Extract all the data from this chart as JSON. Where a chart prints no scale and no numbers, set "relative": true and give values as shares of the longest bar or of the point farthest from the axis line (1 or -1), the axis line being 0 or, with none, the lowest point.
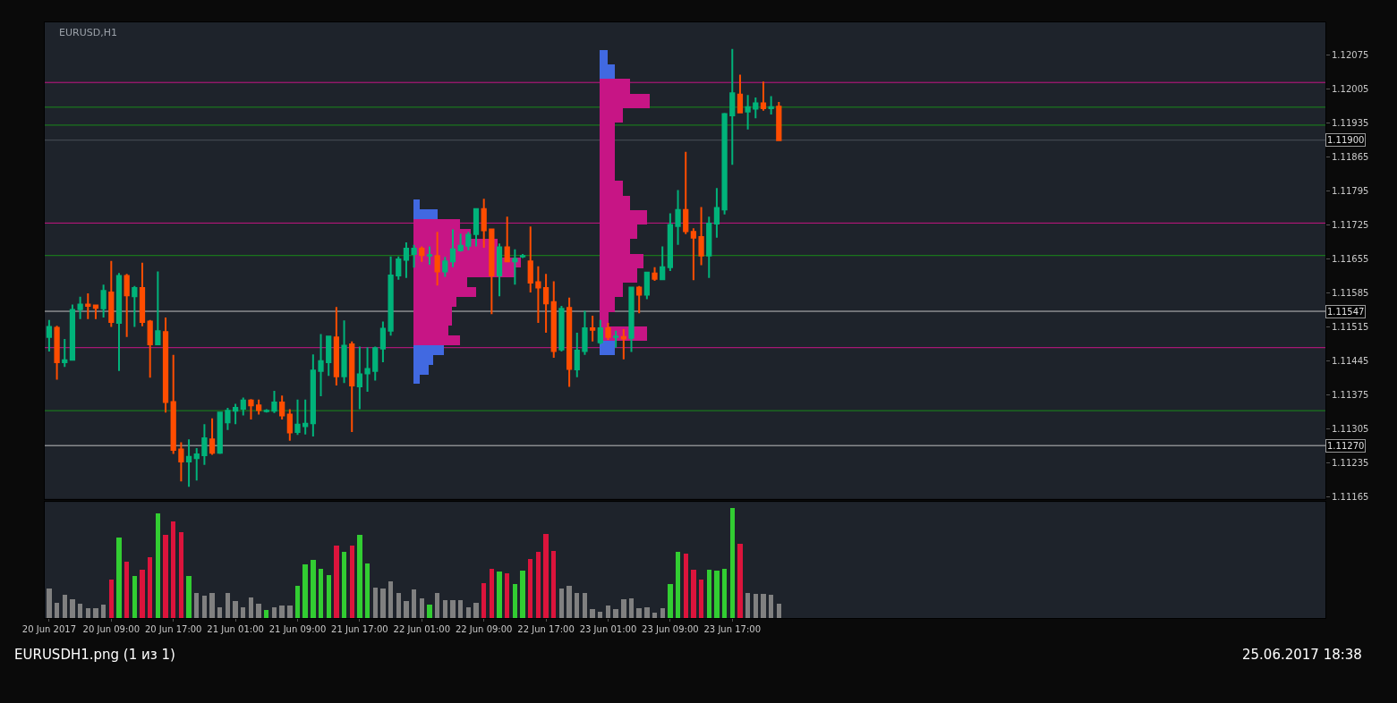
{
  "chart_data": [
    {
      "type": "candlestick",
      "title": "EURUSD,H1",
      "x": [
        "2017-06-20T01:00",
        "2017-06-20T02:00",
        "2017-06-20T03:00",
        "2017-06-20T04:00",
        "2017-06-20T05:00",
        "2017-06-20T06:00",
        "2017-06-20T07:00",
        "2017-06-20T08:00",
        "2017-06-20T09:00",
        "2017-06-20T10:00",
        "2017-06-20T11:00",
        "2017-06-20T12:00",
        "2017-06-20T13:00",
        "2017-06-20T14:00",
        "2017-06-20T15:00",
        "2017-06-20T16:00",
        "2017-06-20T17:00",
        "2017-06-20T18:00",
        "2017-06-20T19:00",
        "2017-06-20T20:00",
        "2017-06-20T21:00",
        "2017-06-20T22:00",
        "2017-06-20T23:00",
        "2017-06-21T00:00",
        "2017-06-21T01:00",
        "2017-06-21T02:00",
        "2017-06-21T03:00",
        "2017-06-21T04:00",
        "2017-06-21T05:00",
        "2017-06-21T06:00",
        "2017-06-21T07:00",
        "2017-06-21T08:00",
        "2017-06-21T09:00",
        "2017-06-21T10:00",
        "2017-06-21T11:00",
        "2017-06-21T12:00",
        "2017-06-21T13:00",
        "2017-06-21T14:00",
        "2017-06-21T15:00",
        "2017-06-21T16:00",
        "2017-06-21T17:00",
        "2017-06-21T18:00",
        "2017-06-21T19:00",
        "2017-06-21T20:00",
        "2017-06-21T21:00",
        "2017-06-21T22:00",
        "2017-06-21T23:00",
        "2017-06-22T00:00",
        "2017-06-22T01:00",
        "2017-06-22T02:00",
        "2017-06-22T03:00",
        "2017-06-22T04:00",
        "2017-06-22T05:00",
        "2017-06-22T06:00",
        "2017-06-22T07:00",
        "2017-06-22T08:00",
        "2017-06-22T09:00",
        "2017-06-22T10:00",
        "2017-06-22T11:00",
        "2017-06-22T12:00",
        "2017-06-22T13:00",
        "2017-06-22T14:00",
        "2017-06-22T15:00",
        "2017-06-22T16:00",
        "2017-06-22T17:00",
        "2017-06-22T18:00",
        "2017-06-22T19:00",
        "2017-06-22T20:00",
        "2017-06-22T21:00",
        "2017-06-22T22:00",
        "2017-06-22T23:00",
        "2017-06-23T00:00",
        "2017-06-23T01:00",
        "2017-06-23T02:00",
        "2017-06-23T03:00",
        "2017-06-23T04:00",
        "2017-06-23T05:00",
        "2017-06-23T06:00",
        "2017-06-23T07:00",
        "2017-06-23T08:00",
        "2017-06-23T09:00",
        "2017-06-23T10:00",
        "2017-06-23T11:00",
        "2017-06-23T12:00",
        "2017-06-23T13:00",
        "2017-06-23T14:00",
        "2017-06-23T15:00",
        "2017-06-23T16:00",
        "2017-06-23T17:00",
        "2017-06-23T18:00",
        "2017-06-23T19:00",
        "2017-06-23T20:00",
        "2017-06-23T21:00",
        "2017-06-23T22:00",
        "2017-06-23T23:00"
      ],
      "ohlc": [
        [
          1.11494,
          1.11529,
          1.11464,
          1.11515
        ],
        [
          1.11513,
          1.11517,
          1.11406,
          1.11442
        ],
        [
          1.11442,
          1.1149,
          1.11432,
          1.11446
        ],
        [
          1.11447,
          1.11561,
          1.11447,
          1.1155
        ],
        [
          1.11551,
          1.11577,
          1.11531,
          1.11561
        ],
        [
          1.11561,
          1.11584,
          1.11531,
          1.11558
        ],
        [
          1.11559,
          1.11561,
          1.11531,
          1.11554
        ],
        [
          1.11553,
          1.11602,
          1.11534,
          1.11589
        ],
        [
          1.11586,
          1.11651,
          1.11515,
          1.11525
        ],
        [
          1.11523,
          1.11626,
          1.11424,
          1.1162
        ],
        [
          1.1162,
          1.11624,
          1.11494,
          1.1158
        ],
        [
          1.11578,
          1.11599,
          1.11515,
          1.11595
        ],
        [
          1.11595,
          1.11647,
          1.11516,
          1.11525
        ],
        [
          1.11526,
          1.11529,
          1.1141,
          1.11479
        ],
        [
          1.11479,
          1.11629,
          1.11479,
          1.11506
        ],
        [
          1.11504,
          1.11534,
          1.11338,
          1.1136
        ],
        [
          1.1136,
          1.11457,
          1.11253,
          1.11261
        ],
        [
          1.11262,
          1.11277,
          1.11196,
          1.11237
        ],
        [
          1.11237,
          1.11283,
          1.11185,
          1.11247
        ],
        [
          1.11244,
          1.11265,
          1.11198,
          1.11252
        ],
        [
          1.1125,
          1.11314,
          1.1123,
          1.11285
        ],
        [
          1.11283,
          1.11326,
          1.11251,
          1.11255
        ],
        [
          1.11255,
          1.1134,
          1.11253,
          1.11338
        ],
        [
          1.11318,
          1.11348,
          1.11302,
          1.11342
        ],
        [
          1.11342,
          1.11356,
          1.11314,
          1.11348
        ],
        [
          1.11346,
          1.11369,
          1.11332,
          1.11363
        ],
        [
          1.11363,
          1.11366,
          1.11324,
          1.11353
        ],
        [
          1.11353,
          1.11365,
          1.11334,
          1.11343
        ],
        [
          1.11341,
          1.11345,
          1.11338,
          1.11342
        ],
        [
          1.11342,
          1.11383,
          1.11337,
          1.11359
        ],
        [
          1.11359,
          1.11373,
          1.11324,
          1.11332
        ],
        [
          1.11334,
          1.11345,
          1.1128,
          1.11297
        ],
        [
          1.11298,
          1.11365,
          1.11292,
          1.11313
        ],
        [
          1.1131,
          1.11365,
          1.11293,
          1.11315
        ],
        [
          1.11316,
          1.11458,
          1.11289,
          1.11425
        ],
        [
          1.11424,
          1.115,
          1.11372,
          1.11444
        ],
        [
          1.11442,
          1.11497,
          1.11414,
          1.11495
        ],
        [
          1.11493,
          1.11556,
          1.11394,
          1.11413
        ],
        [
          1.11413,
          1.11528,
          1.11399,
          1.11476
        ],
        [
          1.11479,
          1.11485,
          1.11298,
          1.11394
        ],
        [
          1.11392,
          1.11474,
          1.11345,
          1.11417
        ],
        [
          1.11419,
          1.11473,
          1.11381,
          1.11428
        ],
        [
          1.11424,
          1.11474,
          1.11404,
          1.11471
        ],
        [
          1.1147,
          1.11526,
          1.11442,
          1.11511
        ],
        [
          1.11507,
          1.1166,
          1.11497,
          1.11621
        ],
        [
          1.11621,
          1.1166,
          1.11612,
          1.11654
        ],
        [
          1.11653,
          1.11689,
          1.11616,
          1.11676
        ],
        [
          1.11665,
          1.11684,
          1.11637,
          1.11676
        ],
        [
          1.11676,
          1.11681,
          1.11649,
          1.11663
        ],
        [
          1.11662,
          1.11681,
          1.11643,
          1.11663
        ],
        [
          1.11661,
          1.11711,
          1.116,
          1.11629
        ],
        [
          1.11629,
          1.11659,
          1.11618,
          1.1165
        ],
        [
          1.1165,
          1.11716,
          1.11638,
          1.11675
        ],
        [
          1.11673,
          1.11707,
          1.1167,
          1.11682
        ],
        [
          1.11682,
          1.11711,
          1.11673,
          1.11705
        ],
        [
          1.11706,
          1.11759,
          1.11681,
          1.11758
        ],
        [
          1.11758,
          1.11779,
          1.11678,
          1.11714
        ],
        [
          1.11716,
          1.11717,
          1.11541,
          1.11621
        ],
        [
          1.11621,
          1.11687,
          1.11578,
          1.11679
        ],
        [
          1.11679,
          1.11742,
          1.11649,
          1.1165
        ],
        [
          1.1165,
          1.11675,
          1.11602,
          1.11655
        ],
        [
          1.1166,
          1.11665,
          1.11657,
          1.11661
        ],
        [
          1.1165,
          1.11722,
          1.11586,
          1.11606
        ],
        [
          1.11607,
          1.1164,
          1.11523,
          1.11596
        ],
        [
          1.11595,
          1.11624,
          1.11503,
          1.11563
        ],
        [
          1.11566,
          1.11609,
          1.11451,
          1.11465
        ],
        [
          1.11468,
          1.11558,
          1.11464,
          1.11552
        ],
        [
          1.11554,
          1.11575,
          1.11391,
          1.11428
        ],
        [
          1.11427,
          1.11503,
          1.11411,
          1.11466
        ],
        [
          1.11465,
          1.11548,
          1.11457,
          1.11512
        ],
        [
          1.11512,
          1.11538,
          1.11485,
          1.11509
        ],
        [
          1.11483,
          1.11529,
          1.11479,
          1.11512
        ],
        [
          1.11512,
          1.11523,
          1.11488,
          1.11494
        ],
        [
          1.11494,
          1.11507,
          1.11472,
          1.11495
        ],
        [
          1.11494,
          1.1151,
          1.11448,
          1.11491
        ],
        [
          1.11492,
          1.11597,
          1.11463,
          1.11596
        ],
        [
          1.11596,
          1.11599,
          1.11543,
          1.11581
        ],
        [
          1.11581,
          1.11627,
          1.11572,
          1.11627
        ],
        [
          1.11625,
          1.11638,
          1.1161,
          1.11614
        ],
        [
          1.11613,
          1.11681,
          1.11613,
          1.11638
        ],
        [
          1.11638,
          1.11749,
          1.1163,
          1.11725
        ],
        [
          1.11723,
          1.11797,
          1.11684,
          1.11756
        ],
        [
          1.11756,
          1.11876,
          1.11706,
          1.11712
        ],
        [
          1.11711,
          1.11718,
          1.11611,
          1.11699
        ],
        [
          1.117,
          1.11762,
          1.11642,
          1.11662
        ],
        [
          1.11662,
          1.11742,
          1.11616,
          1.11728
        ],
        [
          1.11728,
          1.11801,
          1.11699,
          1.1176
        ],
        [
          1.11757,
          1.11956,
          1.11747,
          1.11954
        ],
        [
          1.11951,
          1.12088,
          1.11849,
          1.11997
        ],
        [
          1.11994,
          1.12035,
          1.11956,
          1.11957
        ],
        [
          1.11959,
          1.11993,
          1.11922,
          1.11968
        ],
        [
          1.11965,
          1.11988,
          1.11945,
          1.11976
        ],
        [
          1.11976,
          1.12021,
          1.11961,
          1.11966
        ],
        [
          1.11966,
          1.11991,
          1.11953,
          1.11968
        ],
        [
          1.11969,
          1.11979,
          1.11898,
          1.119
        ]
      ],
      "colors": [
        "#00b37a",
        "#ff4d00",
        "#00b37a",
        "#00b37a",
        "#00b37a",
        "#ff4d00",
        "#ff4d00",
        "#00b37a",
        "#ff4d00",
        "#00b37a",
        "#ff4d00",
        "#00b37a",
        "#ff4d00",
        "#ff4d00",
        "#00b37a",
        "#ff4d00",
        "#ff4d00",
        "#ff4d00",
        "#00b37a",
        "#00b37a",
        "#00b37a",
        "#ff4d00",
        "#00b37a",
        "#00b37a",
        "#00b37a",
        "#00b37a",
        "#ff4d00",
        "#ff4d00",
        "#00b37a",
        "#00b37a",
        "#ff4d00",
        "#ff4d00",
        "#00b37a",
        "#00b37a",
        "#00b37a",
        "#00b37a",
        "#00b37a",
        "#ff4d00",
        "#00b37a",
        "#ff4d00",
        "#00b37a",
        "#00b37a",
        "#00b37a",
        "#00b37a",
        "#00b37a",
        "#00b37a",
        "#00b37a",
        "#00b37a",
        "#ff4d00",
        "#00b37a",
        "#ff4d00",
        "#00b37a",
        "#00b37a",
        "#00b37a",
        "#00b37a",
        "#00b37a",
        "#ff4d00",
        "#ff4d00",
        "#00b37a",
        "#ff4d00",
        "#00b37a",
        "#00b37a",
        "#ff4d00",
        "#ff4d00",
        "#ff4d00",
        "#ff4d00",
        "#00b37a",
        "#ff4d00",
        "#00b37a",
        "#00b37a",
        "#ff4d00",
        "#00b37a",
        "#ff4d00",
        "#00b37a",
        "#ff4d00",
        "#00b37a",
        "#ff4d00",
        "#00b37a",
        "#ff4d00",
        "#00b37a",
        "#00b37a",
        "#00b37a",
        "#ff4d00",
        "#ff4d00",
        "#ff4d00",
        "#00b37a",
        "#00b37a",
        "#00b37a",
        "#00b37a",
        "#ff4d00",
        "#00b37a",
        "#00b37a",
        "#ff4d00",
        "#00b37a",
        "#ff4d00"
      ],
      "xlim": [
        "2017-06-20T00:26",
        "2017-06-26T21:24"
      ],
      "ylim": [
        1.1116,
        1.12143
      ],
      "yticks": [
        1.11165,
        1.11235,
        1.11305,
        1.11375,
        1.11445,
        1.11515,
        1.11585,
        1.11655,
        1.11725,
        1.11795,
        1.11865,
        1.11935,
        1.12005,
        1.12075
      ],
      "tick_labels": "y",
      "ref_lines": [
        {
          "axis": "y",
          "value": 1.11547,
          "label": "1.11547",
          "color": "#c0c0c0"
        },
        {
          "axis": "y",
          "value": 1.1127,
          "label": "1.11270",
          "color": "#c0c0c0"
        },
        {
          "axis": "y",
          "value": 1.119,
          "label": "1.11900",
          "color": "#4a5058"
        },
        {
          "axis": "y",
          "value": 1.11968,
          "color": "#1a8a1a"
        },
        {
          "axis": "y",
          "value": 1.11931,
          "color": "#1a8a1a"
        },
        {
          "axis": "y",
          "value": 1.11662,
          "color": "#1a8a1a"
        },
        {
          "axis": "y",
          "value": 1.11342,
          "color": "#1a8a1a"
        },
        {
          "axis": "y",
          "value": 1.12019,
          "color": "#c71585"
        },
        {
          "axis": "y",
          "value": 1.11729,
          "color": "#c71585"
        },
        {
          "axis": "y",
          "value": 1.11472,
          "color": "#c71585"
        }
      ],
      "annotations": [
        "EURUSDH1.png (1 из 1)",
        "25.06.2017 18:38"
      ]
    },
    {
      "type": "bar",
      "relative": true,
      "x": [
        "2017-06-20T01:00",
        "2017-06-20T02:00",
        "2017-06-20T03:00",
        "2017-06-20T04:00",
        "2017-06-20T05:00",
        "2017-06-20T06:00",
        "2017-06-20T07:00",
        "2017-06-20T08:00",
        "2017-06-20T09:00",
        "2017-06-20T10:00",
        "2017-06-20T11:00",
        "2017-06-20T12:00",
        "2017-06-20T13:00",
        "2017-06-20T14:00",
        "2017-06-20T15:00",
        "2017-06-20T16:00",
        "2017-06-20T17:00",
        "2017-06-20T18:00",
        "2017-06-20T19:00",
        "2017-06-20T20:00",
        "2017-06-20T21:00",
        "2017-06-20T22:00",
        "2017-06-20T23:00",
        "2017-06-21T00:00",
        "2017-06-21T01:00",
        "2017-06-21T02:00",
        "2017-06-21T03:00",
        "2017-06-21T04:00",
        "2017-06-21T05:00",
        "2017-06-21T06:00",
        "2017-06-21T07:00",
        "2017-06-21T08:00",
        "2017-06-21T09:00",
        "2017-06-21T10:00",
        "2017-06-21T11:00",
        "2017-06-21T12:00",
        "2017-06-21T13:00",
        "2017-06-21T14:00",
        "2017-06-21T15:00",
        "2017-06-21T16:00",
        "2017-06-21T17:00",
        "2017-06-21T18:00",
        "2017-06-21T19:00",
        "2017-06-21T20:00",
        "2017-06-21T21:00",
        "2017-06-21T22:00",
        "2017-06-21T23:00",
        "2017-06-22T00:00",
        "2017-06-22T01:00",
        "2017-06-22T02:00",
        "2017-06-22T03:00",
        "2017-06-22T04:00",
        "2017-06-22T05:00",
        "2017-06-22T06:00",
        "2017-06-22T07:00",
        "2017-06-22T08:00",
        "2017-06-22T09:00",
        "2017-06-22T10:00",
        "2017-06-22T11:00",
        "2017-06-22T12:00",
        "2017-06-22T13:00",
        "2017-06-22T14:00",
        "2017-06-22T15:00",
        "2017-06-22T16:00",
        "2017-06-22T17:00",
        "2017-06-22T18:00",
        "2017-06-22T19:00",
        "2017-06-22T20:00",
        "2017-06-22T21:00",
        "2017-06-22T22:00",
        "2017-06-22T23:00",
        "2017-06-23T00:00",
        "2017-06-23T01:00",
        "2017-06-23T02:00",
        "2017-06-23T03:00",
        "2017-06-23T04:00",
        "2017-06-23T05:00",
        "2017-06-23T06:00",
        "2017-06-23T07:00",
        "2017-06-23T08:00",
        "2017-06-23T09:00",
        "2017-06-23T10:00",
        "2017-06-23T11:00",
        "2017-06-23T12:00",
        "2017-06-23T13:00",
        "2017-06-23T14:00",
        "2017-06-23T15:00",
        "2017-06-23T16:00",
        "2017-06-23T17:00",
        "2017-06-23T18:00",
        "2017-06-23T19:00",
        "2017-06-23T20:00",
        "2017-06-23T21:00",
        "2017-06-23T22:00",
        "2017-06-23T23:00"
      ],
      "values": [
        0.27,
        0.14,
        0.21,
        0.17,
        0.13,
        0.09,
        0.09,
        0.12,
        0.35,
        0.73,
        0.51,
        0.38,
        0.44,
        0.55,
        0.95,
        0.76,
        0.88,
        0.78,
        0.38,
        0.23,
        0.2,
        0.23,
        0.1,
        0.23,
        0.15,
        0.1,
        0.19,
        0.13,
        0.07,
        0.1,
        0.11,
        0.11,
        0.29,
        0.49,
        0.53,
        0.45,
        0.39,
        0.66,
        0.6,
        0.66,
        0.76,
        0.5,
        0.28,
        0.27,
        0.33,
        0.23,
        0.15,
        0.26,
        0.18,
        0.12,
        0.23,
        0.16,
        0.16,
        0.16,
        0.1,
        0.14,
        0.32,
        0.45,
        0.42,
        0.41,
        0.31,
        0.43,
        0.54,
        0.6,
        0.77,
        0.61,
        0.27,
        0.29,
        0.23,
        0.23,
        0.08,
        0.06,
        0.11,
        0.08,
        0.17,
        0.18,
        0.09,
        0.1,
        0.05,
        0.09,
        0.31,
        0.6,
        0.59,
        0.44,
        0.35,
        0.44,
        0.43,
        0.45,
        1,
        0.68,
        0.23,
        0.22,
        0.22,
        0.21,
        0.13
      ],
      "colors": [
        "#808080",
        "#808080",
        "#808080",
        "#808080",
        "#808080",
        "#808080",
        "#808080",
        "#808080",
        "#dc143c",
        "#32cd32",
        "#dc143c",
        "#32cd32",
        "#dc143c",
        "#dc143c",
        "#32cd32",
        "#dc143c",
        "#dc143c",
        "#dc143c",
        "#32cd32",
        "#808080",
        "#808080",
        "#808080",
        "#808080",
        "#808080",
        "#808080",
        "#808080",
        "#808080",
        "#808080",
        "#32cd32",
        "#808080",
        "#808080",
        "#808080",
        "#32cd32",
        "#32cd32",
        "#32cd32",
        "#32cd32",
        "#32cd32",
        "#dc143c",
        "#32cd32",
        "#dc143c",
        "#32cd32",
        "#32cd32",
        "#808080",
        "#808080",
        "#808080",
        "#808080",
        "#808080",
        "#808080",
        "#808080",
        "#32cd32",
        "#808080",
        "#808080",
        "#808080",
        "#808080",
        "#808080",
        "#808080",
        "#dc143c",
        "#dc143c",
        "#32cd32",
        "#dc143c",
        "#32cd32",
        "#32cd32",
        "#dc143c",
        "#dc143c",
        "#dc143c",
        "#dc143c",
        "#808080",
        "#808080",
        "#808080",
        "#808080",
        "#808080",
        "#808080",
        "#808080",
        "#808080",
        "#808080",
        "#808080",
        "#808080",
        "#808080",
        "#808080",
        "#808080",
        "#32cd32",
        "#32cd32",
        "#dc143c",
        "#dc143c",
        "#dc143c",
        "#32cd32",
        "#32cd32",
        "#32cd32",
        "#32cd32",
        "#dc143c",
        "#808080",
        "#808080",
        "#808080",
        "#808080",
        "#808080"
      ],
      "xlim": [
        "2017-06-20T00:26",
        "2017-06-26T21:24"
      ],
      "xticks": [
        {
          "value": "2017-06-20T01:00",
          "label": "20 Jun 2017"
        },
        {
          "value": "2017-06-20T09:00",
          "label": "20 Jun 09:00"
        },
        {
          "value": "2017-06-20T17:00",
          "label": "20 Jun 17:00"
        },
        {
          "value": "2017-06-21T01:00",
          "label": "21 Jun 01:00"
        },
        {
          "value": "2017-06-21T09:00",
          "label": "21 Jun 09:00"
        },
        {
          "value": "2017-06-21T17:00",
          "label": "21 Jun 17:00"
        },
        {
          "value": "2017-06-22T01:00",
          "label": "22 Jun 01:00"
        },
        {
          "value": "2017-06-22T09:00",
          "label": "22 Jun 09:00"
        },
        {
          "value": "2017-06-22T17:00",
          "label": "22 Jun 17:00"
        },
        {
          "value": "2017-06-23T01:00",
          "label": "23 Jun 01:00"
        },
        {
          "value": "2017-06-23T09:00",
          "label": "23 Jun 09:00"
        },
        {
          "value": "2017-06-23T17:00",
          "label": "23 Jun 17:00"
        }
      ],
      "tick_labels": "x"
    },
    {
      "type": "bar",
      "orientation": "horizontal",
      "relative": true,
      "categories": [
        null,
        null,
        null,
        null,
        null,
        null,
        null,
        null,
        null,
        null,
        null,
        null,
        null,
        null,
        null,
        null,
        null,
        null,
        null
      ],
      "values": [
        0.06,
        0.22,
        0.43,
        0.53,
        0.78,
        0.78,
        1,
        0.94,
        0.5,
        0.58,
        0.4,
        0.36,
        0.36,
        0.32,
        0.43,
        0.28,
        0.18,
        0.14,
        0.06
      ],
      "colors": [
        "#4169e1",
        "#4169e1",
        "#c71585",
        "#c71585",
        "#c71585",
        "#c71585",
        "#c71585",
        "#c71585",
        "#c71585",
        "#c71585",
        "#c71585",
        "#c71585",
        "#c71585",
        "#c71585",
        "#c71585",
        "#4169e1",
        "#4169e1",
        "#4169e1",
        "#4169e1"
      ]
    },
    {
      "type": "bar",
      "orientation": "horizontal",
      "relative": true,
      "categories": [
        null,
        null,
        null,
        null,
        null,
        null,
        null,
        null,
        null,
        null,
        null,
        null,
        null,
        null,
        null,
        null,
        null,
        null,
        null,
        null,
        null
      ],
      "values": [
        0.16,
        0.3,
        0.61,
        1,
        0.47,
        0.3,
        0.3,
        0.3,
        0.3,
        0.47,
        0.61,
        0.94,
        0.75,
        0.61,
        0.88,
        0.75,
        0.47,
        0.3,
        0.17,
        0.94,
        0.31
      ],
      "colors": [
        "#4169e1",
        "#4169e1",
        "#c71585",
        "#c71585",
        "#c71585",
        "#c71585",
        "#c71585",
        "#c71585",
        "#c71585",
        "#c71585",
        "#c71585",
        "#c71585",
        "#c71585",
        "#c71585",
        "#c71585",
        "#c71585",
        "#c71585",
        "#c71585",
        "#c71585",
        "#c71585",
        "#4169e1"
      ]
    }
  ]
}
